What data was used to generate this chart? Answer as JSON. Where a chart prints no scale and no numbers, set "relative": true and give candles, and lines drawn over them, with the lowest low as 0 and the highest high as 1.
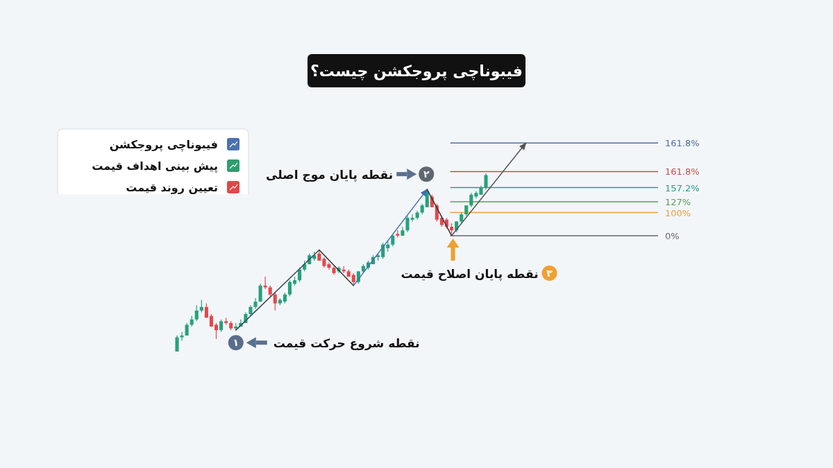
{
  "chart_data": [
    {
      "type": "candlestick",
      "relative": true,
      "title": "فیبوناچی پروجکشن چیست؟",
      "categories": [
        null,
        null,
        null,
        null,
        null,
        null,
        null,
        null,
        null,
        null,
        null,
        null,
        null,
        null,
        null,
        null,
        null,
        null,
        null,
        null,
        null,
        null,
        null,
        null,
        null,
        null,
        null,
        null,
        null,
        null,
        null,
        null,
        null,
        null,
        null,
        null,
        null,
        null,
        null,
        null,
        null,
        null,
        null,
        null,
        null,
        null,
        null,
        null,
        null,
        null,
        null,
        null,
        null,
        null,
        null,
        null,
        null,
        null,
        null,
        null,
        null,
        null,
        null,
        null
      ],
      "ohlc": [
        [
          0,
          0.09,
          0,
          0.08
        ],
        [
          0.08,
          0.11,
          0.06,
          0.09
        ],
        [
          0.09,
          0.16,
          0.09,
          0.15
        ],
        [
          0.15,
          0.2,
          0.14,
          0.18
        ],
        [
          0.18,
          0.26,
          0.17,
          0.23
        ],
        [
          0.23,
          0.29,
          0.22,
          0.25
        ],
        [
          0.25,
          0.27,
          0.19,
          0.19
        ],
        [
          0.2,
          0.21,
          0.14,
          0.14
        ],
        [
          0.15,
          0.16,
          0.07,
          0.12
        ],
        [
          0.12,
          0.18,
          0.11,
          0.17
        ],
        [
          0.17,
          0.19,
          0.15,
          0.16
        ],
        [
          0.16,
          0.17,
          0.12,
          0.13
        ],
        [
          0.13,
          0.16,
          0.12,
          0.14
        ],
        [
          0.14,
          0.18,
          0.14,
          0.16
        ],
        [
          0.16,
          0.22,
          0.16,
          0.21
        ],
        [
          0.21,
          0.26,
          0.2,
          0.25
        ],
        [
          0.25,
          0.3,
          0.24,
          0.28
        ],
        [
          0.28,
          0.38,
          0.28,
          0.37
        ],
        [
          0.37,
          0.42,
          0.35,
          0.36
        ],
        [
          0.36,
          0.37,
          0.31,
          0.32
        ],
        [
          0.32,
          0.33,
          0.23,
          0.27
        ],
        [
          0.27,
          0.3,
          0.26,
          0.29
        ],
        [
          0.28,
          0.33,
          0.27,
          0.32
        ],
        [
          0.32,
          0.4,
          0.31,
          0.39
        ],
        [
          0.38,
          0.42,
          0.37,
          0.4
        ],
        [
          0.4,
          0.47,
          0.39,
          0.46
        ],
        [
          0.46,
          0.51,
          0.45,
          0.49
        ],
        [
          0.49,
          0.55,
          0.49,
          0.54
        ],
        [
          0.52,
          0.56,
          0.51,
          0.54
        ],
        [
          0.55,
          0.57,
          0.51,
          0.51
        ],
        [
          0.52,
          0.53,
          0.47,
          0.48
        ],
        [
          0.49,
          0.5,
          0.46,
          0.47
        ],
        [
          0.47,
          0.48,
          0.43,
          0.44
        ],
        [
          0.45,
          0.48,
          0.44,
          0.47
        ],
        [
          0.46,
          0.48,
          0.44,
          0.45
        ],
        [
          0.45,
          0.46,
          0.42,
          0.42
        ],
        [
          0.43,
          0.44,
          0.37,
          0.39
        ],
        [
          0.39,
          0.45,
          0.38,
          0.45
        ],
        [
          0.45,
          0.49,
          0.44,
          0.48
        ],
        [
          0.47,
          0.51,
          0.46,
          0.5
        ],
        [
          0.49,
          0.54,
          0.49,
          0.53
        ],
        [
          0.53,
          0.55,
          0.51,
          0.54
        ],
        [
          0.53,
          0.61,
          0.52,
          0.6
        ],
        [
          0.58,
          0.62,
          0.56,
          0.6
        ],
        [
          0.6,
          0.66,
          0.59,
          0.65
        ],
        [
          0.66,
          0.68,
          0.64,
          0.65
        ],
        [
          0.65,
          0.7,
          0.65,
          0.68
        ],
        [
          0.68,
          0.76,
          0.67,
          0.75
        ],
        [
          0.74,
          0.77,
          0.73,
          0.75
        ],
        [
          0.75,
          0.79,
          0.74,
          0.78
        ],
        [
          0.78,
          0.83,
          0.77,
          0.82
        ],
        [
          0.81,
          0.91,
          0.81,
          0.9
        ],
        [
          0.87,
          0.88,
          0.81,
          0.81
        ],
        [
          0.82,
          0.83,
          0.73,
          0.74
        ],
        [
          0.75,
          0.76,
          0.7,
          0.71
        ],
        [
          0.74,
          0.75,
          0.69,
          0.7
        ],
        [
          0.7,
          0.72,
          0.66,
          0.68
        ],
        [
          0.68,
          0.73,
          0.67,
          0.73
        ],
        [
          0.73,
          0.78,
          0.72,
          0.77
        ],
        [
          0.77,
          0.82,
          0.76,
          0.82
        ],
        [
          0.82,
          0.89,
          0.81,
          0.88
        ],
        [
          0.87,
          0.9,
          0.86,
          0.89
        ],
        [
          0.88,
          0.93,
          0.88,
          0.92
        ],
        [
          0.92,
          1,
          0.91,
          0.99
        ]
      ],
      "ref_lines": [
        {
          "axis": "y",
          "value": 1.17,
          "color": "#4a6fa5"
        },
        {
          "axis": "y",
          "value": 1.01,
          "color": "#c0504d"
        },
        {
          "axis": "y",
          "value": 0.92,
          "color": "#2e9a8e"
        },
        {
          "axis": "y",
          "value": 0.84,
          "color": "#5a9e5a"
        },
        {
          "axis": "y",
          "value": 0.78,
          "color": "#e9a23b"
        },
        {
          "axis": "y",
          "value": 0.65,
          "color": "#666666"
        }
      ],
      "annotations": [
        "۱",
        "نقطه شروع حرکت قیمت",
        "۲",
        "نقطه پایان موج اصلی",
        "۳",
        "نقطه پایان اصلاح قیمت",
        "161.8%",
        "161.8%",
        "157.2%",
        "127%",
        "100%",
        "0%"
      ]
    },
    {
      "type": "other",
      "annotations": [
        "فیبوناچی پروجکشن",
        "پیش بینی اهداف قیمت",
        "تعیین روند قیمت"
      ]
    }
  ]
}
